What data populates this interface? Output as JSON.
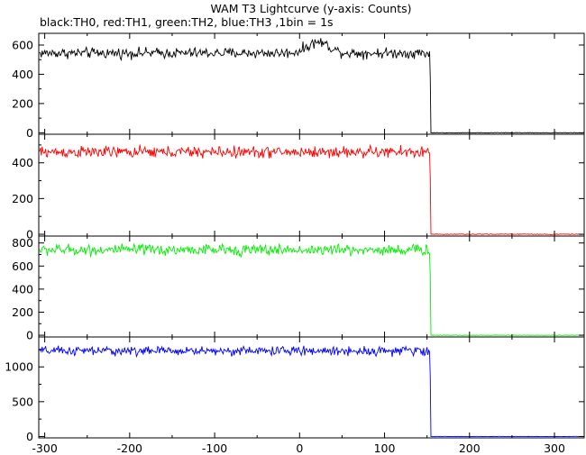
{
  "chart_data": {
    "type": "line",
    "title": "WAM T3 Lightcurve (y-axis: Counts)",
    "subtitle": "black:TH0, red:TH1, green:TH2, blue:TH3 ,1bin = 1s",
    "xlabel": "",
    "ylabel": "",
    "xlim": [
      -307,
      335
    ],
    "x_ticks": [
      -300,
      -200,
      -100,
      0,
      100,
      200,
      300
    ],
    "x_tick_labels": [
      "-300",
      "-200",
      "-100",
      "0",
      "100",
      "200",
      "300"
    ],
    "bin_seconds": 1,
    "series": [
      {
        "name": "TH0",
        "color": "#000000",
        "ylim": [
          -10,
          680
        ],
        "y_ticks": [
          0,
          200,
          400,
          600
        ],
        "y_tick_labels": [
          "0",
          "200",
          "400",
          "600"
        ],
        "level_before": 545,
        "noise": 22,
        "level_after": 0,
        "drop_x": 153,
        "features": [
          {
            "x": 22,
            "value": 620,
            "width": 18
          }
        ]
      },
      {
        "name": "TH1",
        "color": "#ff0000",
        "ylim": [
          -10,
          560
        ],
        "y_ticks": [
          0,
          200,
          400
        ],
        "y_tick_labels": [
          "0",
          "200",
          "400"
        ],
        "level_before": 460,
        "noise": 20,
        "level_after": 0,
        "drop_x": 153,
        "features": []
      },
      {
        "name": "TH2",
        "color": "#00ee00",
        "ylim": [
          -15,
          860
        ],
        "y_ticks": [
          0,
          200,
          400,
          600,
          800
        ],
        "y_tick_labels": [
          "0",
          "200",
          "400",
          "600",
          "800"
        ],
        "level_before": 740,
        "noise": 30,
        "level_after": 0,
        "drop_x": 153,
        "features": []
      },
      {
        "name": "TH3",
        "color": "#0000ff",
        "ylim": [
          -20,
          1430
        ],
        "y_ticks": [
          0,
          500,
          1000
        ],
        "y_tick_labels": [
          "0",
          "500",
          "1000"
        ],
        "level_before": 1230,
        "noise": 40,
        "level_after": 0,
        "drop_x": 153,
        "features": []
      }
    ]
  }
}
